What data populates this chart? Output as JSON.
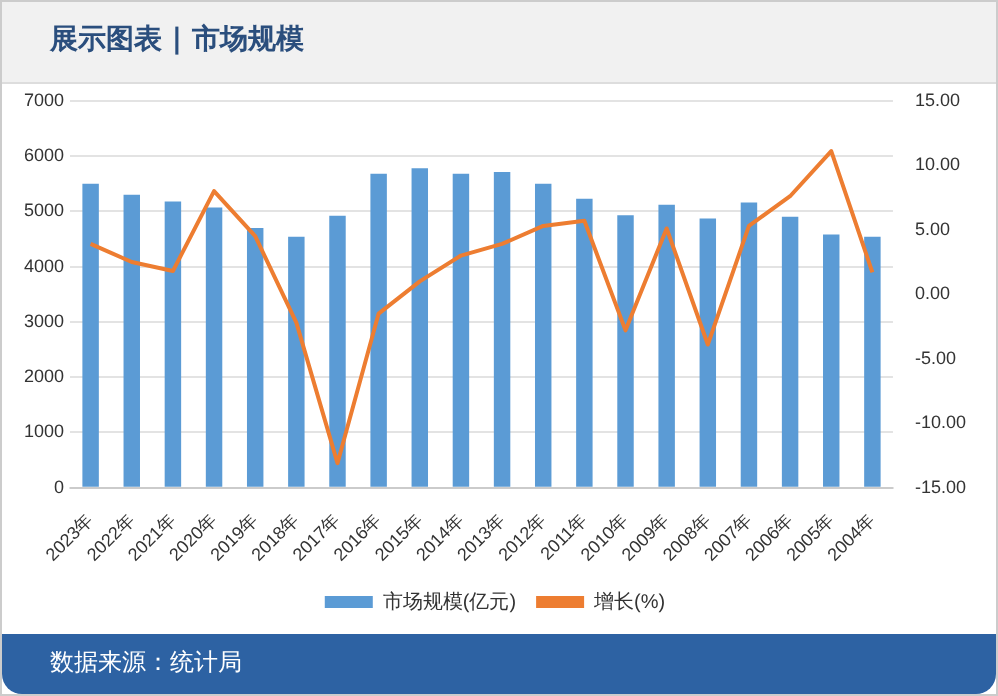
{
  "chart_data": {
    "type": "bar",
    "title": "展示图表 | 市场规模",
    "categories": [
      "2023年",
      "2022年",
      "2021年",
      "2020年",
      "2019年",
      "2018年",
      "2017年",
      "2016年",
      "2015年",
      "2014年",
      "2013年",
      "2012年",
      "2011年",
      "2010年",
      "2009年",
      "2008年",
      "2007年",
      "2006年",
      "2005年",
      "2004年"
    ],
    "series": [
      {
        "name": "市场规模(亿元)",
        "color": "#5b9bd5",
        "values": [
          5500,
          5300,
          5180,
          5070,
          4700,
          4540,
          4920,
          5680,
          5780,
          5680,
          5710,
          5500,
          5230,
          4930,
          5120,
          4870,
          5160,
          4900,
          4580,
          4540
        ]
      },
      {
        "name": "增长(%)",
        "type": "line",
        "axis": "y2",
        "color": "#ed7d31",
        "values": [
          3.9,
          2.5,
          1.8,
          8.0,
          4.5,
          -2.2,
          -13.1,
          -1.5,
          1.0,
          3.0,
          3.9,
          5.3,
          5.7,
          -2.8,
          5.1,
          -3.9,
          5.3,
          7.6,
          11.1,
          1.7
        ]
      }
    ],
    "ylim": [
      0,
      7000
    ],
    "yticks": [
      0,
      1000,
      2000,
      3000,
      4000,
      5000,
      6000,
      7000
    ],
    "y2lim": [
      -15,
      15
    ],
    "y2ticks": [
      {
        "value": -15,
        "label": "-15.00"
      },
      {
        "value": -10,
        "label": "-10.00"
      },
      {
        "value": -5,
        "label": "-5.00"
      },
      {
        "value": 0,
        "label": "0.00"
      },
      {
        "value": 5,
        "label": "5.00"
      },
      {
        "value": 10,
        "label": "10.00"
      },
      {
        "value": 15,
        "label": "15.00"
      }
    ],
    "grid": "y",
    "legend": "bottom",
    "marker": "none",
    "annotations": [
      "数据来源：统计局"
    ]
  }
}
